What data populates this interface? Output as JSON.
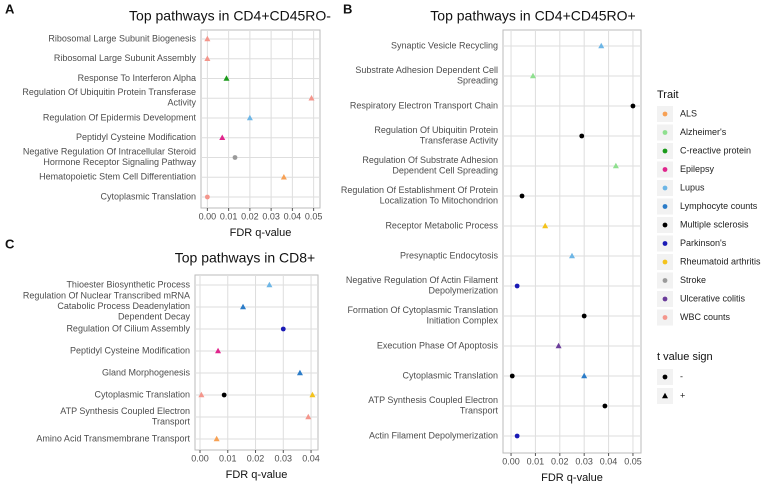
{
  "chart_data": [
    {
      "type": "scatter",
      "panel": "A",
      "title": "Top pathways in CD4+CD45RO-",
      "xlabel": "FDR q-value",
      "categories": [
        "Ribosomal Large Subunit Biogenesis",
        "Ribosomal Large Subunit Assembly",
        "Response To Interferon Alpha",
        "Regulation Of Ubiquitin Protein Transferase\nActivity",
        "Regulation Of Epidermis Development",
        "Peptidyl Cysteine Modification",
        "Negative Regulation Of Intracellular Steroid\nHormone Receptor Signaling Pathway",
        "Hematopoietic Stem Cell Differentiation",
        "Cytoplasmic Translation"
      ],
      "xlim": [
        -0.003,
        0.053
      ],
      "xticks": [
        {
          "value": 0,
          "label": "0.00"
        },
        {
          "value": 0.01,
          "label": "0.01"
        },
        {
          "value": 0.02,
          "label": "0.02"
        },
        {
          "value": 0.03,
          "label": "0.03"
        },
        {
          "value": 0.04,
          "label": "0.04"
        },
        {
          "value": 0.05,
          "label": "0.05"
        }
      ],
      "grid": true,
      "points": [
        {
          "category": "Ribosomal Large Subunit Biogenesis",
          "trait": "WBC counts",
          "sign": "+",
          "x": 0.0
        },
        {
          "category": "Ribosomal Large Subunit Assembly",
          "trait": "WBC counts",
          "sign": "+",
          "x": 0.0
        },
        {
          "category": "Response To Interferon Alpha",
          "trait": "C-reactive protein",
          "sign": "+",
          "x": 0.009
        },
        {
          "category": "Regulation Of Ubiquitin Protein Transferase\nActivity",
          "trait": "WBC counts",
          "sign": "+",
          "x": 0.049
        },
        {
          "category": "Regulation Of Epidermis Development",
          "trait": "Lupus",
          "sign": "+",
          "x": 0.02
        },
        {
          "category": "Peptidyl Cysteine Modification",
          "trait": "Epilepsy",
          "sign": "+",
          "x": 0.007
        },
        {
          "category": "Negative Regulation Of Intracellular Steroid\nHormone Receptor Signaling Pathway",
          "trait": "Stroke",
          "sign": "-",
          "x": 0.013
        },
        {
          "category": "Hematopoietic Stem Cell Differentiation",
          "trait": "ALS",
          "sign": "+",
          "x": 0.036
        },
        {
          "category": "Cytoplasmic Translation",
          "trait": "WBC counts",
          "sign": "-",
          "x": 0.0
        }
      ]
    },
    {
      "type": "scatter",
      "panel": "B",
      "title": "Top pathways in CD4+CD45RO+",
      "xlabel": "FDR q-value",
      "categories": [
        "Synaptic Vesicle Recycling",
        "Substrate Adhesion Dependent Cell\nSpreading",
        "Respiratory Electron Transport Chain",
        "Regulation Of Ubiquitin Protein\nTransferase Activity",
        "Regulation Of Substrate Adhesion\nDependent Cell Spreading",
        "Regulation Of Establishment Of Protein\nLocalization To Mitochondrion",
        "Receptor Metabolic Process",
        "Presynaptic Endocytosis",
        "Negative Regulation Of Actin Filament\nDepolymerization",
        "Formation Of Cytoplasmic Translation\nInitiation Complex",
        "Execution Phase Of Apoptosis",
        "Cytoplasmic Translation",
        "ATP Synthesis Coupled Electron\nTransport",
        "Actin Filament Depolymerization"
      ],
      "xlim": [
        -0.0033,
        0.0533
      ],
      "xticks": [
        {
          "value": 0,
          "label": "0.00"
        },
        {
          "value": 0.01,
          "label": "0.01"
        },
        {
          "value": 0.02,
          "label": "0.02"
        },
        {
          "value": 0.03,
          "label": "0.03"
        },
        {
          "value": 0.04,
          "label": "0.04"
        },
        {
          "value": 0.05,
          "label": "0.05"
        }
      ],
      "grid": true,
      "points": [
        {
          "category": "Synaptic Vesicle Recycling",
          "trait": "Lupus",
          "sign": "+",
          "x": 0.037
        },
        {
          "category": "Substrate Adhesion Dependent Cell\nSpreading",
          "trait": "Alzheimer's",
          "sign": "+",
          "x": 0.009
        },
        {
          "category": "Respiratory Electron Transport Chain",
          "trait": "Multiple sclerosis",
          "sign": "-",
          "x": 0.05
        },
        {
          "category": "Regulation Of Ubiquitin Protein\nTransferase Activity",
          "trait": "Multiple sclerosis",
          "sign": "-",
          "x": 0.029
        },
        {
          "category": "Regulation Of Substrate Adhesion\nDependent Cell Spreading",
          "trait": "Alzheimer's",
          "sign": "+",
          "x": 0.043
        },
        {
          "category": "Regulation Of Establishment Of Protein\nLocalization To Mitochondrion",
          "trait": "Multiple sclerosis",
          "sign": "-",
          "x": 0.0045
        },
        {
          "category": "Receptor Metabolic Process",
          "trait": "Rheumatoid arthritis",
          "sign": "+",
          "x": 0.014
        },
        {
          "category": "Presynaptic Endocytosis",
          "trait": "Lupus",
          "sign": "+",
          "x": 0.025
        },
        {
          "category": "Negative Regulation Of Actin Filament\nDepolymerization",
          "trait": "Parkinson's",
          "sign": "-",
          "x": 0.0025
        },
        {
          "category": "Formation Of Cytoplasmic Translation\nInitiation Complex",
          "trait": "Multiple sclerosis",
          "sign": "-",
          "x": 0.03
        },
        {
          "category": "Execution Phase Of Apoptosis",
          "trait": "Ulcerative colitis",
          "sign": "+",
          "x": 0.0195
        },
        {
          "category": "Cytoplasmic Translation",
          "trait": "Multiple sclerosis",
          "sign": "-",
          "x": 0.0005
        },
        {
          "category": "Cytoplasmic Translation",
          "trait": "Lymphocyte counts",
          "sign": "+",
          "x": 0.03
        },
        {
          "category": "ATP Synthesis Coupled Electron\nTransport",
          "trait": "Multiple sclerosis",
          "sign": "-",
          "x": 0.0385
        },
        {
          "category": "Actin Filament Depolymerization",
          "trait": "Parkinson's",
          "sign": "-",
          "x": 0.0025
        }
      ]
    },
    {
      "type": "scatter",
      "panel": "C",
      "title": "Top pathways in CD8+",
      "xlabel": "FDR q-value",
      "categories": [
        "Thioester Biosynthetic Process",
        "Regulation Of Nuclear Transcribed mRNA\nCatabolic Process Deadenylation\nDependent Decay",
        "Regulation Of Cilium Assembly",
        "Peptidyl Cysteine Modification",
        "Gland Morphogenesis",
        "Cytoplasmic Translation",
        "ATP Synthesis Coupled Electron\nTransport",
        "Amino Acid Transmembrane Transport"
      ],
      "xlim": [
        -0.0018,
        0.0425
      ],
      "xticks": [
        {
          "value": 0,
          "label": "0.00"
        },
        {
          "value": 0.01,
          "label": "0.01"
        },
        {
          "value": 0.02,
          "label": "0.02"
        },
        {
          "value": 0.03,
          "label": "0.03"
        },
        {
          "value": 0.04,
          "label": "0.04"
        }
      ],
      "grid": true,
      "points": [
        {
          "category": "Thioester Biosynthetic Process",
          "trait": "Lupus",
          "sign": "+",
          "x": 0.025
        },
        {
          "category": "Regulation Of Nuclear Transcribed mRNA\nCatabolic Process Deadenylation\nDependent Decay",
          "trait": "Lymphocyte counts",
          "sign": "+",
          "x": 0.0155
        },
        {
          "category": "Regulation Of Cilium Assembly",
          "trait": "Parkinson's",
          "sign": "-",
          "x": 0.03
        },
        {
          "category": "Peptidyl Cysteine Modification",
          "trait": "Epilepsy",
          "sign": "+",
          "x": 0.0065
        },
        {
          "category": "Gland Morphogenesis",
          "trait": "Lymphocyte counts",
          "sign": "+",
          "x": 0.036
        },
        {
          "category": "Cytoplasmic Translation",
          "trait": "WBC counts",
          "sign": "+",
          "x": 0.0005
        },
        {
          "category": "Cytoplasmic Translation",
          "trait": "Multiple sclerosis",
          "sign": "-",
          "x": 0.0087
        },
        {
          "category": "Cytoplasmic Translation",
          "trait": "Rheumatoid arthritis",
          "sign": "+",
          "x": 0.0405
        },
        {
          "category": "ATP Synthesis Coupled Electron\nTransport",
          "trait": "WBC counts",
          "sign": "+",
          "x": 0.039
        },
        {
          "category": "Amino Acid Transmembrane Transport",
          "trait": "ALS",
          "sign": "+",
          "x": 0.006
        }
      ]
    }
  ],
  "legend": {
    "title": "Trait",
    "items": [
      {
        "name": "ALS",
        "color": "#f7a155"
      },
      {
        "name": "Alzheimer's",
        "color": "#8fe08f"
      },
      {
        "name": "C-reactive protein",
        "color": "#1a9a1a"
      },
      {
        "name": "Epilepsy",
        "color": "#e0258c"
      },
      {
        "name": "Lupus",
        "color": "#6db6e6"
      },
      {
        "name": "Lymphocyte counts",
        "color": "#2b7cc8"
      },
      {
        "name": "Multiple sclerosis",
        "color": "#000000"
      },
      {
        "name": "Parkinson's",
        "color": "#1a1ab5"
      },
      {
        "name": "Rheumatoid arthritis",
        "color": "#f4c31c"
      },
      {
        "name": "Stroke",
        "color": "#9a9a9a"
      },
      {
        "name": "Ulcerative colitis",
        "color": "#6a3c9a"
      },
      {
        "name": "WBC counts",
        "color": "#f4968c"
      }
    ],
    "shape_title": "t value sign",
    "shapes": [
      {
        "label": "-",
        "shape": "circle"
      },
      {
        "label": "+",
        "shape": "triangle"
      }
    ]
  }
}
